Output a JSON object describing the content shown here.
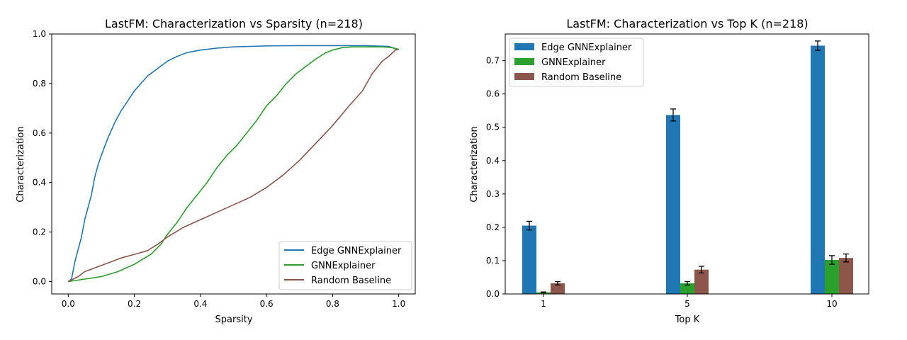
{
  "chart_data": [
    {
      "type": "line",
      "title": "LastFM: Characterization vs Sparsity (n=218)",
      "xlabel": "Sparsity",
      "ylabel": "Characterization",
      "xlim": [
        -0.05,
        1.05
      ],
      "ylim": [
        -0.05,
        1.0
      ],
      "xticks": [
        "0.0",
        "0.2",
        "0.4",
        "0.6",
        "0.8",
        "1.0"
      ],
      "yticks": [
        "0.0",
        "0.2",
        "0.4",
        "0.6",
        "0.8",
        "1.0"
      ],
      "legend_position": "lower-right",
      "grid": false,
      "series": [
        {
          "name": "Edge GNNExplainer",
          "color": "#1f77b4",
          "points": [
            [
              0.0,
              0.0
            ],
            [
              0.01,
              0.01
            ],
            [
              0.02,
              0.08
            ],
            [
              0.03,
              0.13
            ],
            [
              0.04,
              0.18
            ],
            [
              0.05,
              0.25
            ],
            [
              0.06,
              0.3
            ],
            [
              0.07,
              0.35
            ],
            [
              0.08,
              0.42
            ],
            [
              0.09,
              0.47
            ],
            [
              0.1,
              0.51
            ],
            [
              0.12,
              0.58
            ],
            [
              0.14,
              0.64
            ],
            [
              0.16,
              0.69
            ],
            [
              0.18,
              0.73
            ],
            [
              0.2,
              0.77
            ],
            [
              0.22,
              0.8
            ],
            [
              0.24,
              0.83
            ],
            [
              0.26,
              0.85
            ],
            [
              0.28,
              0.87
            ],
            [
              0.3,
              0.89
            ],
            [
              0.33,
              0.91
            ],
            [
              0.36,
              0.925
            ],
            [
              0.4,
              0.935
            ],
            [
              0.45,
              0.943
            ],
            [
              0.5,
              0.948
            ],
            [
              0.55,
              0.95
            ],
            [
              0.6,
              0.952
            ],
            [
              0.7,
              0.953
            ],
            [
              0.8,
              0.953
            ],
            [
              0.9,
              0.953
            ],
            [
              0.97,
              0.95
            ],
            [
              0.99,
              0.94
            ],
            [
              1.0,
              0.938
            ]
          ]
        },
        {
          "name": "GNNExplainer",
          "color": "#2ca02c",
          "points": [
            [
              0.0,
              0.0
            ],
            [
              0.05,
              0.01
            ],
            [
              0.1,
              0.02
            ],
            [
              0.15,
              0.04
            ],
            [
              0.2,
              0.07
            ],
            [
              0.25,
              0.11
            ],
            [
              0.28,
              0.15
            ],
            [
              0.3,
              0.19
            ],
            [
              0.33,
              0.24
            ],
            [
              0.36,
              0.3
            ],
            [
              0.39,
              0.35
            ],
            [
              0.42,
              0.4
            ],
            [
              0.45,
              0.46
            ],
            [
              0.48,
              0.51
            ],
            [
              0.51,
              0.55
            ],
            [
              0.54,
              0.6
            ],
            [
              0.57,
              0.65
            ],
            [
              0.6,
              0.71
            ],
            [
              0.63,
              0.75
            ],
            [
              0.66,
              0.8
            ],
            [
              0.69,
              0.84
            ],
            [
              0.72,
              0.87
            ],
            [
              0.75,
              0.9
            ],
            [
              0.78,
              0.925
            ],
            [
              0.8,
              0.935
            ],
            [
              0.83,
              0.945
            ],
            [
              0.86,
              0.948
            ],
            [
              0.9,
              0.948
            ],
            [
              0.95,
              0.948
            ],
            [
              0.98,
              0.945
            ],
            [
              1.0,
              0.938
            ]
          ]
        },
        {
          "name": "Random Baseline",
          "color": "#8c564b",
          "points": [
            [
              0.0,
              0.0
            ],
            [
              0.03,
              0.02
            ],
            [
              0.05,
              0.04
            ],
            [
              0.08,
              0.055
            ],
            [
              0.12,
              0.075
            ],
            [
              0.16,
              0.095
            ],
            [
              0.2,
              0.11
            ],
            [
              0.24,
              0.125
            ],
            [
              0.27,
              0.15
            ],
            [
              0.3,
              0.18
            ],
            [
              0.35,
              0.22
            ],
            [
              0.4,
              0.25
            ],
            [
              0.45,
              0.28
            ],
            [
              0.5,
              0.31
            ],
            [
              0.55,
              0.34
            ],
            [
              0.6,
              0.38
            ],
            [
              0.65,
              0.43
            ],
            [
              0.7,
              0.49
            ],
            [
              0.75,
              0.56
            ],
            [
              0.8,
              0.63
            ],
            [
              0.85,
              0.71
            ],
            [
              0.89,
              0.77
            ],
            [
              0.92,
              0.84
            ],
            [
              0.95,
              0.89
            ],
            [
              0.97,
              0.91
            ],
            [
              0.99,
              0.935
            ],
            [
              1.0,
              0.938
            ]
          ]
        }
      ]
    },
    {
      "type": "bar",
      "title": "LastFM: Characterization vs Top K (n=218)",
      "xlabel": "Top K",
      "ylabel": "Characterization",
      "categories": [
        "1",
        "5",
        "10"
      ],
      "ylim": [
        0.0,
        0.78
      ],
      "yticks": [
        "0.0",
        "0.1",
        "0.2",
        "0.3",
        "0.4",
        "0.5",
        "0.6",
        "0.7"
      ],
      "legend_position": "upper-left",
      "grid": false,
      "series": [
        {
          "name": "Edge GNNExplainer",
          "color": "#1f77b4",
          "values": [
            0.205,
            0.537,
            0.745
          ],
          "errors": [
            0.013,
            0.018,
            0.014
          ]
        },
        {
          "name": "GNNExplainer",
          "color": "#2ca02c",
          "values": [
            0.005,
            0.032,
            0.102
          ],
          "errors": [
            0.001,
            0.005,
            0.013
          ]
        },
        {
          "name": "Random Baseline",
          "color": "#8c564b",
          "values": [
            0.032,
            0.073,
            0.108
          ],
          "errors": [
            0.005,
            0.01,
            0.012
          ]
        }
      ]
    }
  ]
}
